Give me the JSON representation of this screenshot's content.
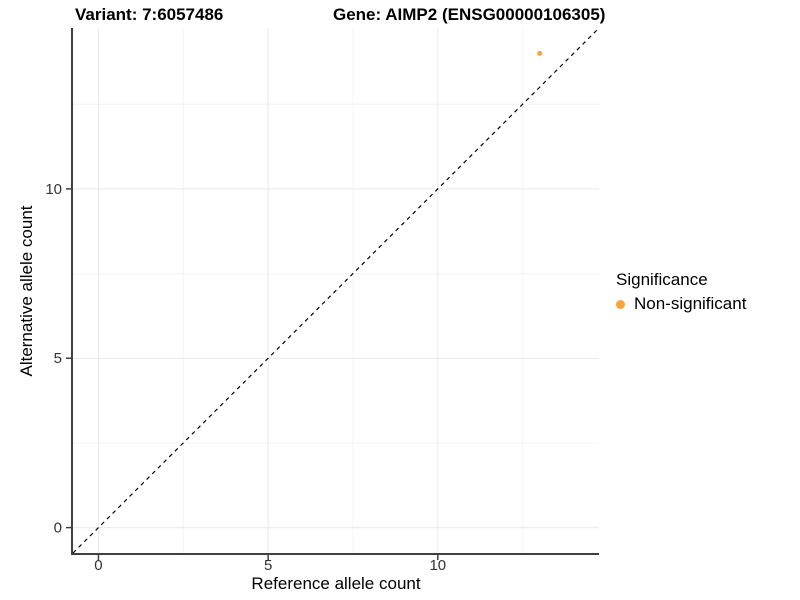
{
  "chart_data": {
    "type": "scatter",
    "titles": {
      "left": "Variant: 7:6057486",
      "right": "Gene: AIMP2 (ENSG00000106305)"
    },
    "xlabel": "Reference allele count",
    "ylabel": "Alternative allele count",
    "xlim": [
      -0.75,
      14.75
    ],
    "ylim": [
      -0.75,
      14.75
    ],
    "x_ticks": [
      0,
      5,
      10
    ],
    "y_ticks": [
      0,
      5,
      10
    ],
    "x_minor_ticks": [
      2.5,
      7.5,
      12.5
    ],
    "y_minor_ticks": [
      2.5,
      7.5,
      12.5
    ],
    "grid": true,
    "points": [
      {
        "x": 13,
        "y": 14,
        "series": "Non-significant",
        "color": "#FAA43A",
        "radius": 2.5
      }
    ],
    "reference_line": {
      "kind": "identity",
      "slope": 1,
      "intercept": 0,
      "style": "dashed",
      "color": "#000000"
    },
    "legend": {
      "title": "Significance",
      "position": "right",
      "items": [
        {
          "label": "Non-significant",
          "color": "#FAA43A"
        }
      ]
    },
    "colors": {
      "grid_major": "#E9E9E9",
      "grid_minor": "#F4F4F4",
      "axis_line": "#404040",
      "tick_label": "#333333",
      "title_text": "#000000"
    },
    "tick_label_font_px": 15
  }
}
